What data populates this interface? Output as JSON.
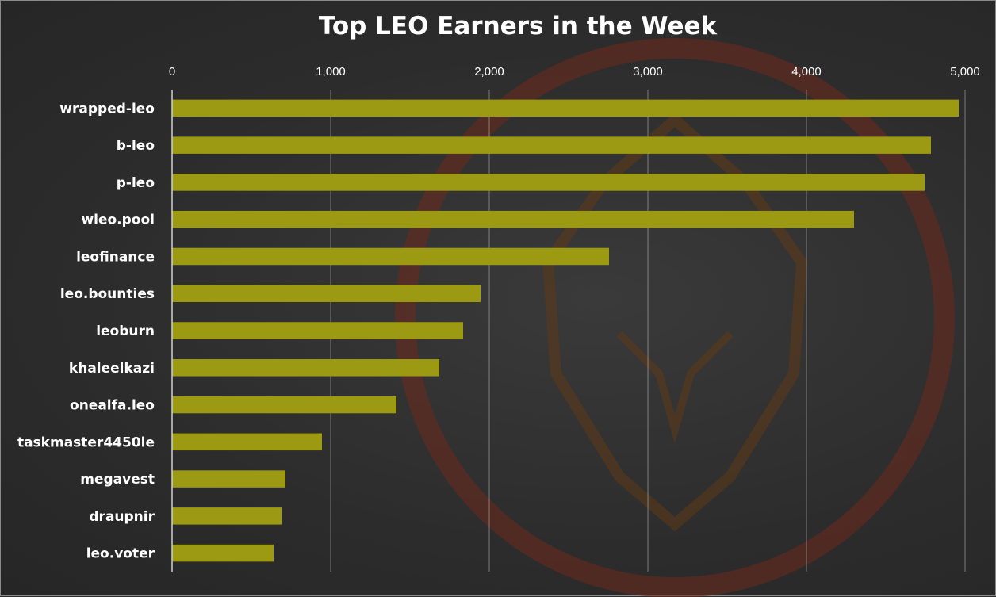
{
  "chart_data": {
    "type": "bar",
    "orientation": "horizontal",
    "title": "Top LEO Earners in the Week",
    "xlabel": "",
    "ylabel": "",
    "xlim": [
      0,
      5000
    ],
    "x_ticks": [
      0,
      1000,
      2000,
      3000,
      4000,
      5000
    ],
    "x_tick_labels": [
      "0",
      "1,000",
      "2,000",
      "3,000",
      "4,000",
      "5,000"
    ],
    "x_axis_position": "top",
    "grid": true,
    "legend": "none",
    "categories": [
      "wrapped-leo",
      "b-leo",
      "p-leo",
      "wleo.pool",
      "leofinance",
      "leo.bounties",
      "leoburn",
      "khaleelkazi",
      "onealfa.leo",
      "taskmaster4450le",
      "megavest",
      "draupnir",
      "leo.voter"
    ],
    "values": [
      4960,
      4785,
      4745,
      4300,
      2755,
      1945,
      1835,
      1685,
      1415,
      945,
      715,
      690,
      640
    ],
    "colors": {
      "bar": "#9c9a12",
      "background": "#2e2e2e",
      "grid": "#bdbdbd",
      "text": "#ffffff",
      "watermark": "#7a2e1e"
    }
  }
}
